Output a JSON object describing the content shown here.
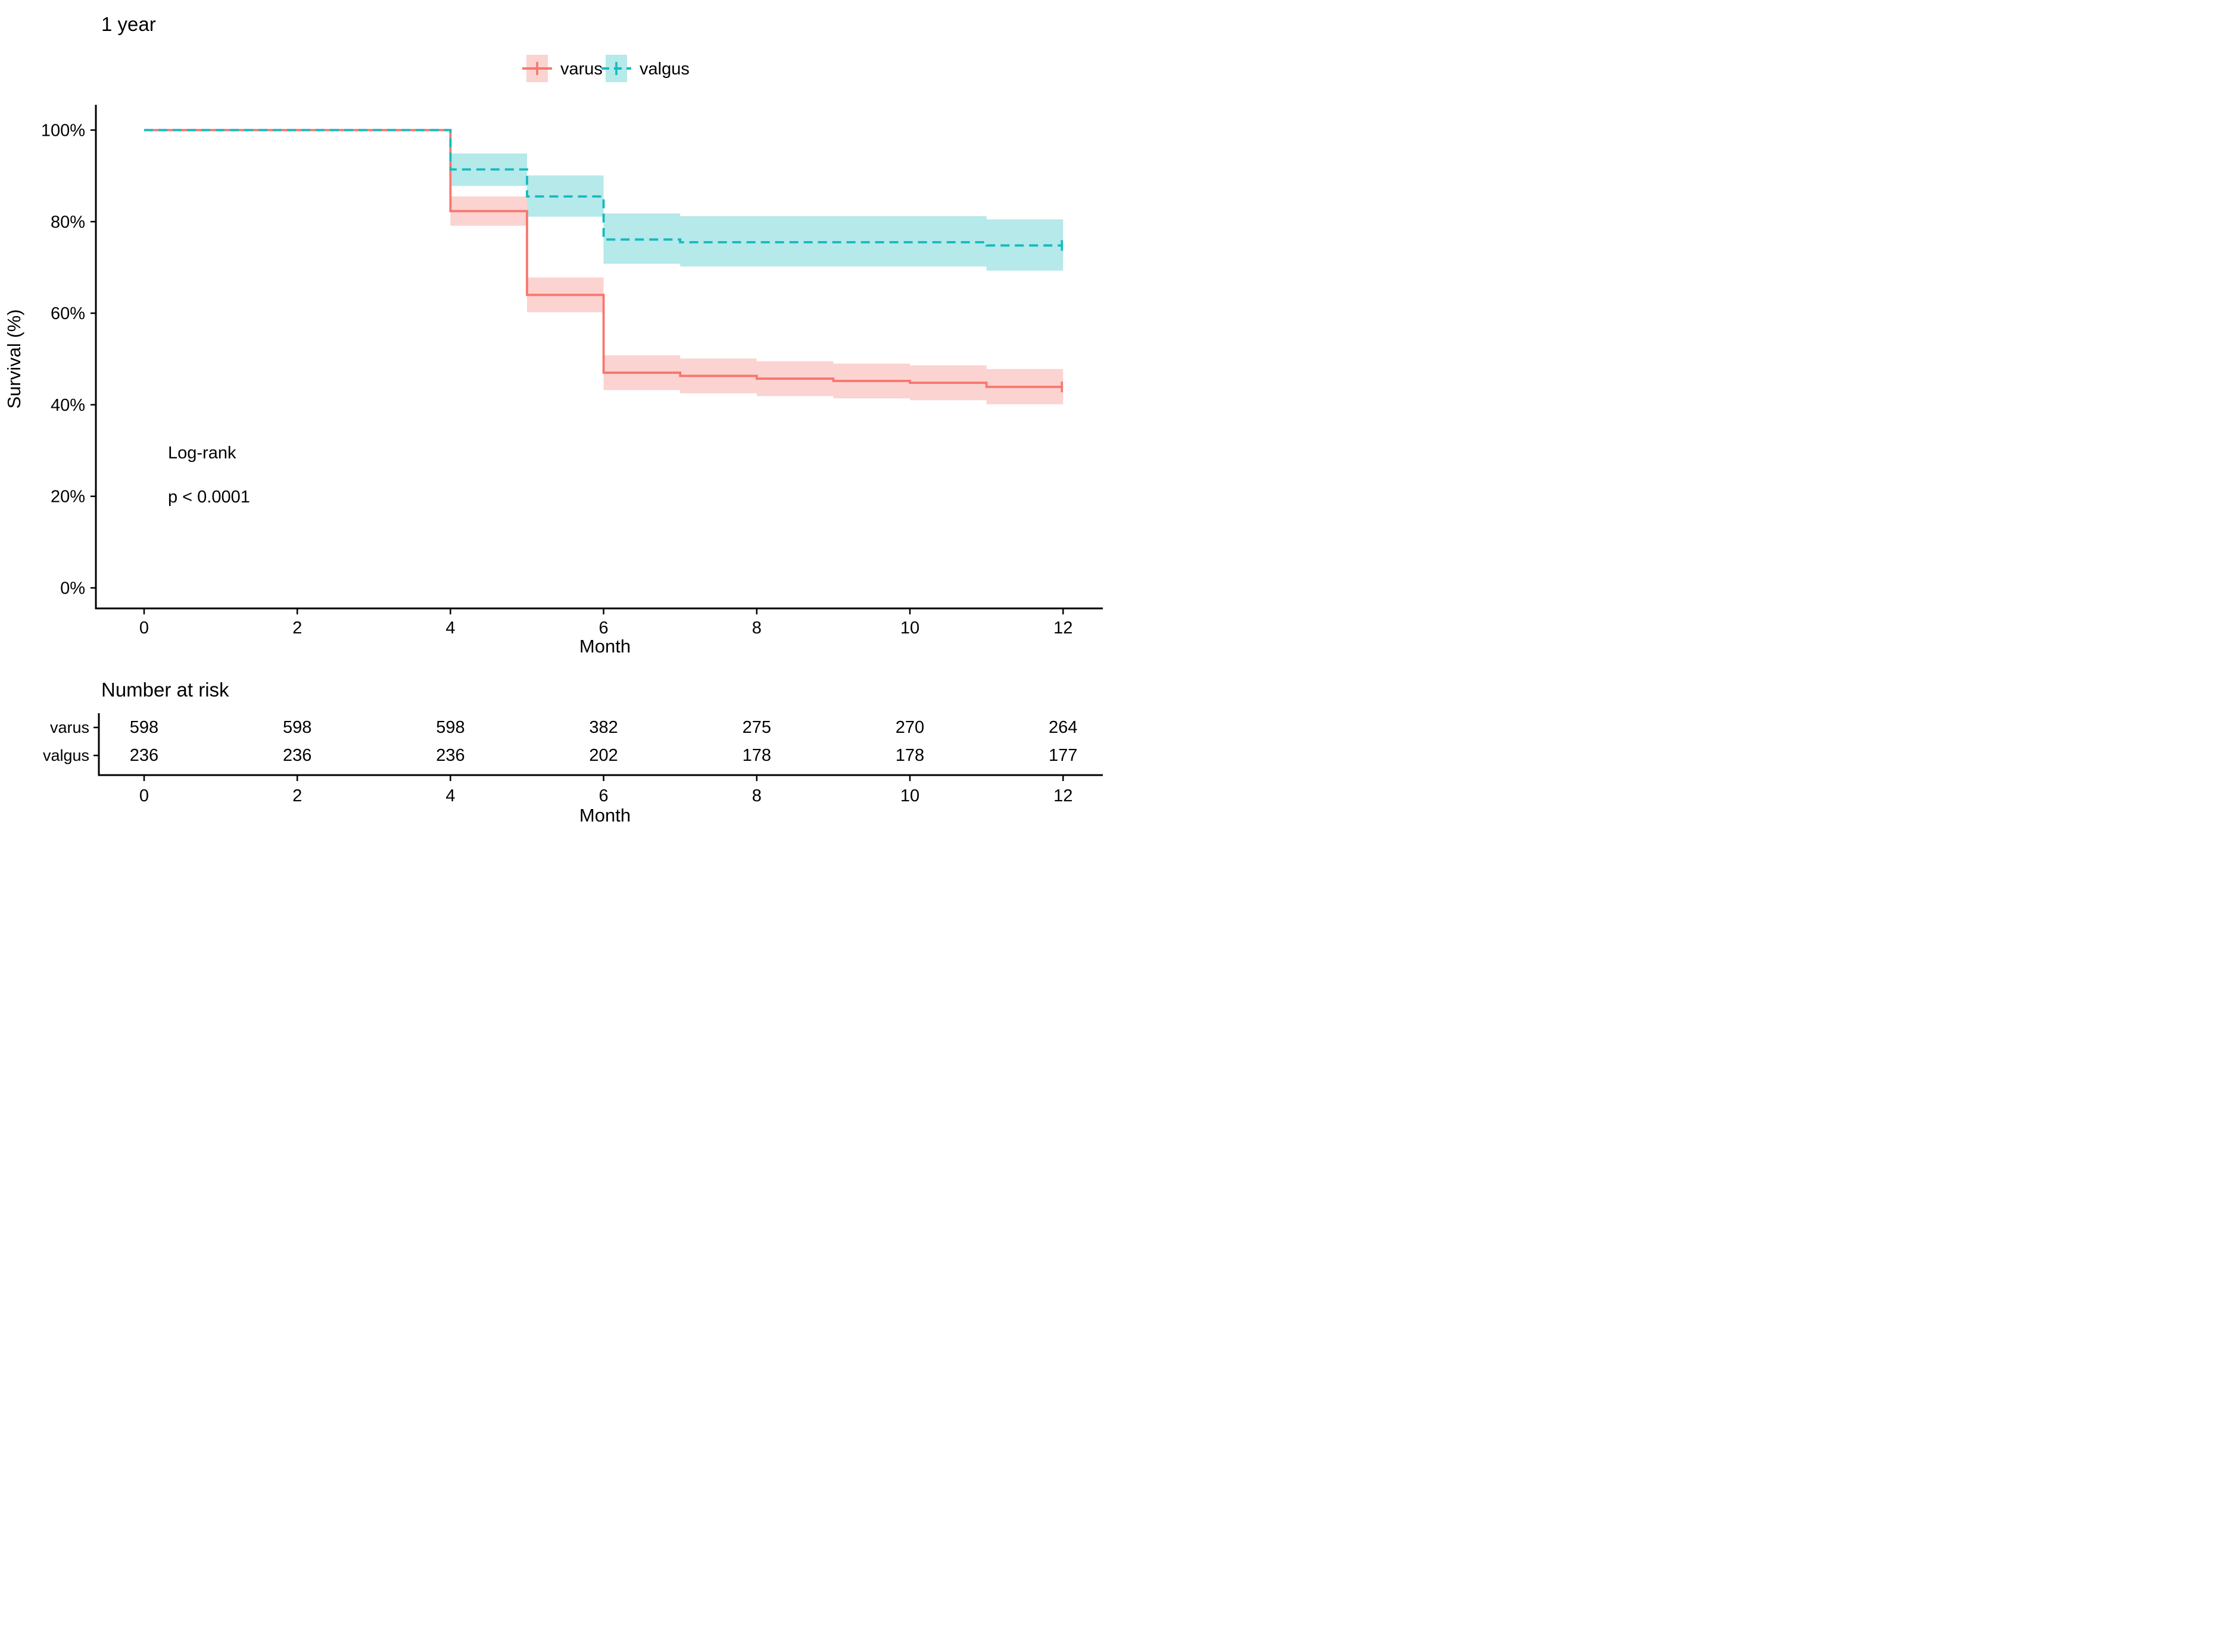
{
  "title": "1 year",
  "legend": {
    "items": [
      {
        "label": "varus",
        "line_color": "#F8766D",
        "band_color": "#FBD3D0",
        "dash": "solid"
      },
      {
        "label": "valgus",
        "line_color": "#14BABF",
        "band_color": "#B5E9EA",
        "dash": "dashed"
      }
    ]
  },
  "annotation": {
    "line1": "Log-rank",
    "line2": "p < 0.0001"
  },
  "axes": {
    "y_label": "Survival (%)",
    "x_label": "Month",
    "y_ticks": [
      {
        "value": 100,
        "label": "100%"
      },
      {
        "value": 80,
        "label": "80%"
      },
      {
        "value": 60,
        "label": "60%"
      },
      {
        "value": 40,
        "label": "40%"
      },
      {
        "value": 20,
        "label": "20%"
      },
      {
        "value": 0,
        "label": "0%"
      }
    ],
    "x_ticks": [
      0,
      2,
      4,
      6,
      8,
      10,
      12
    ]
  },
  "risk_table": {
    "header": "Number at risk",
    "x_label": "Month",
    "x_ticks": [
      0,
      2,
      4,
      6,
      8,
      10,
      12
    ],
    "rows": [
      {
        "label": "varus",
        "color": "#F8766D",
        "values": [
          598,
          598,
          598,
          382,
          275,
          270,
          264
        ]
      },
      {
        "label": "valgus",
        "color": "#14BABF",
        "values": [
          236,
          236,
          236,
          202,
          178,
          178,
          177
        ]
      }
    ]
  },
  "chart_data": {
    "type": "line",
    "subtype": "kaplan-meier-step",
    "title": "1 year",
    "xlabel": "Month",
    "ylabel": "Survival (%)",
    "xlim": [
      0,
      12
    ],
    "ylim": [
      0,
      100
    ],
    "grid": false,
    "legend_position": "top",
    "series": [
      {
        "name": "varus",
        "color": "#F8766D",
        "dash": "solid",
        "start": {
          "x": 0,
          "y": 100
        },
        "segments": [
          {
            "x0": 4,
            "x1": 5,
            "est": 82.3,
            "lo": 79.1,
            "hi": 85.5
          },
          {
            "x0": 5,
            "x1": 6,
            "est": 64.0,
            "lo": 60.2,
            "hi": 67.8
          },
          {
            "x0": 6,
            "x1": 7,
            "est": 47.0,
            "lo": 43.2,
            "hi": 50.8
          },
          {
            "x0": 7,
            "x1": 8,
            "est": 46.3,
            "lo": 42.5,
            "hi": 50.1
          },
          {
            "x0": 8,
            "x1": 9,
            "est": 45.7,
            "lo": 41.9,
            "hi": 49.5
          },
          {
            "x0": 9,
            "x1": 10,
            "est": 45.2,
            "lo": 41.4,
            "hi": 49.0
          },
          {
            "x0": 10,
            "x1": 11,
            "est": 44.8,
            "lo": 41.0,
            "hi": 48.6
          },
          {
            "x0": 11,
            "x1": 12,
            "est": 43.9,
            "lo": 40.1,
            "hi": 47.8
          }
        ],
        "censor_marks": [
          {
            "x": 12,
            "y": 43.9
          }
        ]
      },
      {
        "name": "valgus",
        "color": "#14BABF",
        "dash": "dashed",
        "start": {
          "x": 0,
          "y": 100
        },
        "segments": [
          {
            "x0": 4,
            "x1": 5,
            "est": 91.4,
            "lo": 87.8,
            "hi": 94.9
          },
          {
            "x0": 5,
            "x1": 6,
            "est": 85.5,
            "lo": 81.1,
            "hi": 90.1
          },
          {
            "x0": 6,
            "x1": 7,
            "est": 76.1,
            "lo": 70.8,
            "hi": 81.8
          },
          {
            "x0": 7,
            "x1": 11,
            "est": 75.5,
            "lo": 70.2,
            "hi": 81.2
          },
          {
            "x0": 11,
            "x1": 12,
            "est": 74.8,
            "lo": 69.3,
            "hi": 80.5
          }
        ],
        "censor_marks": [
          {
            "x": 12,
            "y": 74.8
          }
        ]
      }
    ],
    "annotations": [
      "Log-rank",
      "p < 0.0001"
    ],
    "risk_table": {
      "title": "Number at risk",
      "x": [
        0,
        2,
        4,
        6,
        8,
        10,
        12
      ],
      "rows": [
        {
          "name": "varus",
          "values": [
            598,
            598,
            598,
            382,
            275,
            270,
            264
          ]
        },
        {
          "name": "valgus",
          "values": [
            236,
            236,
            236,
            202,
            178,
            178,
            177
          ]
        }
      ]
    }
  }
}
